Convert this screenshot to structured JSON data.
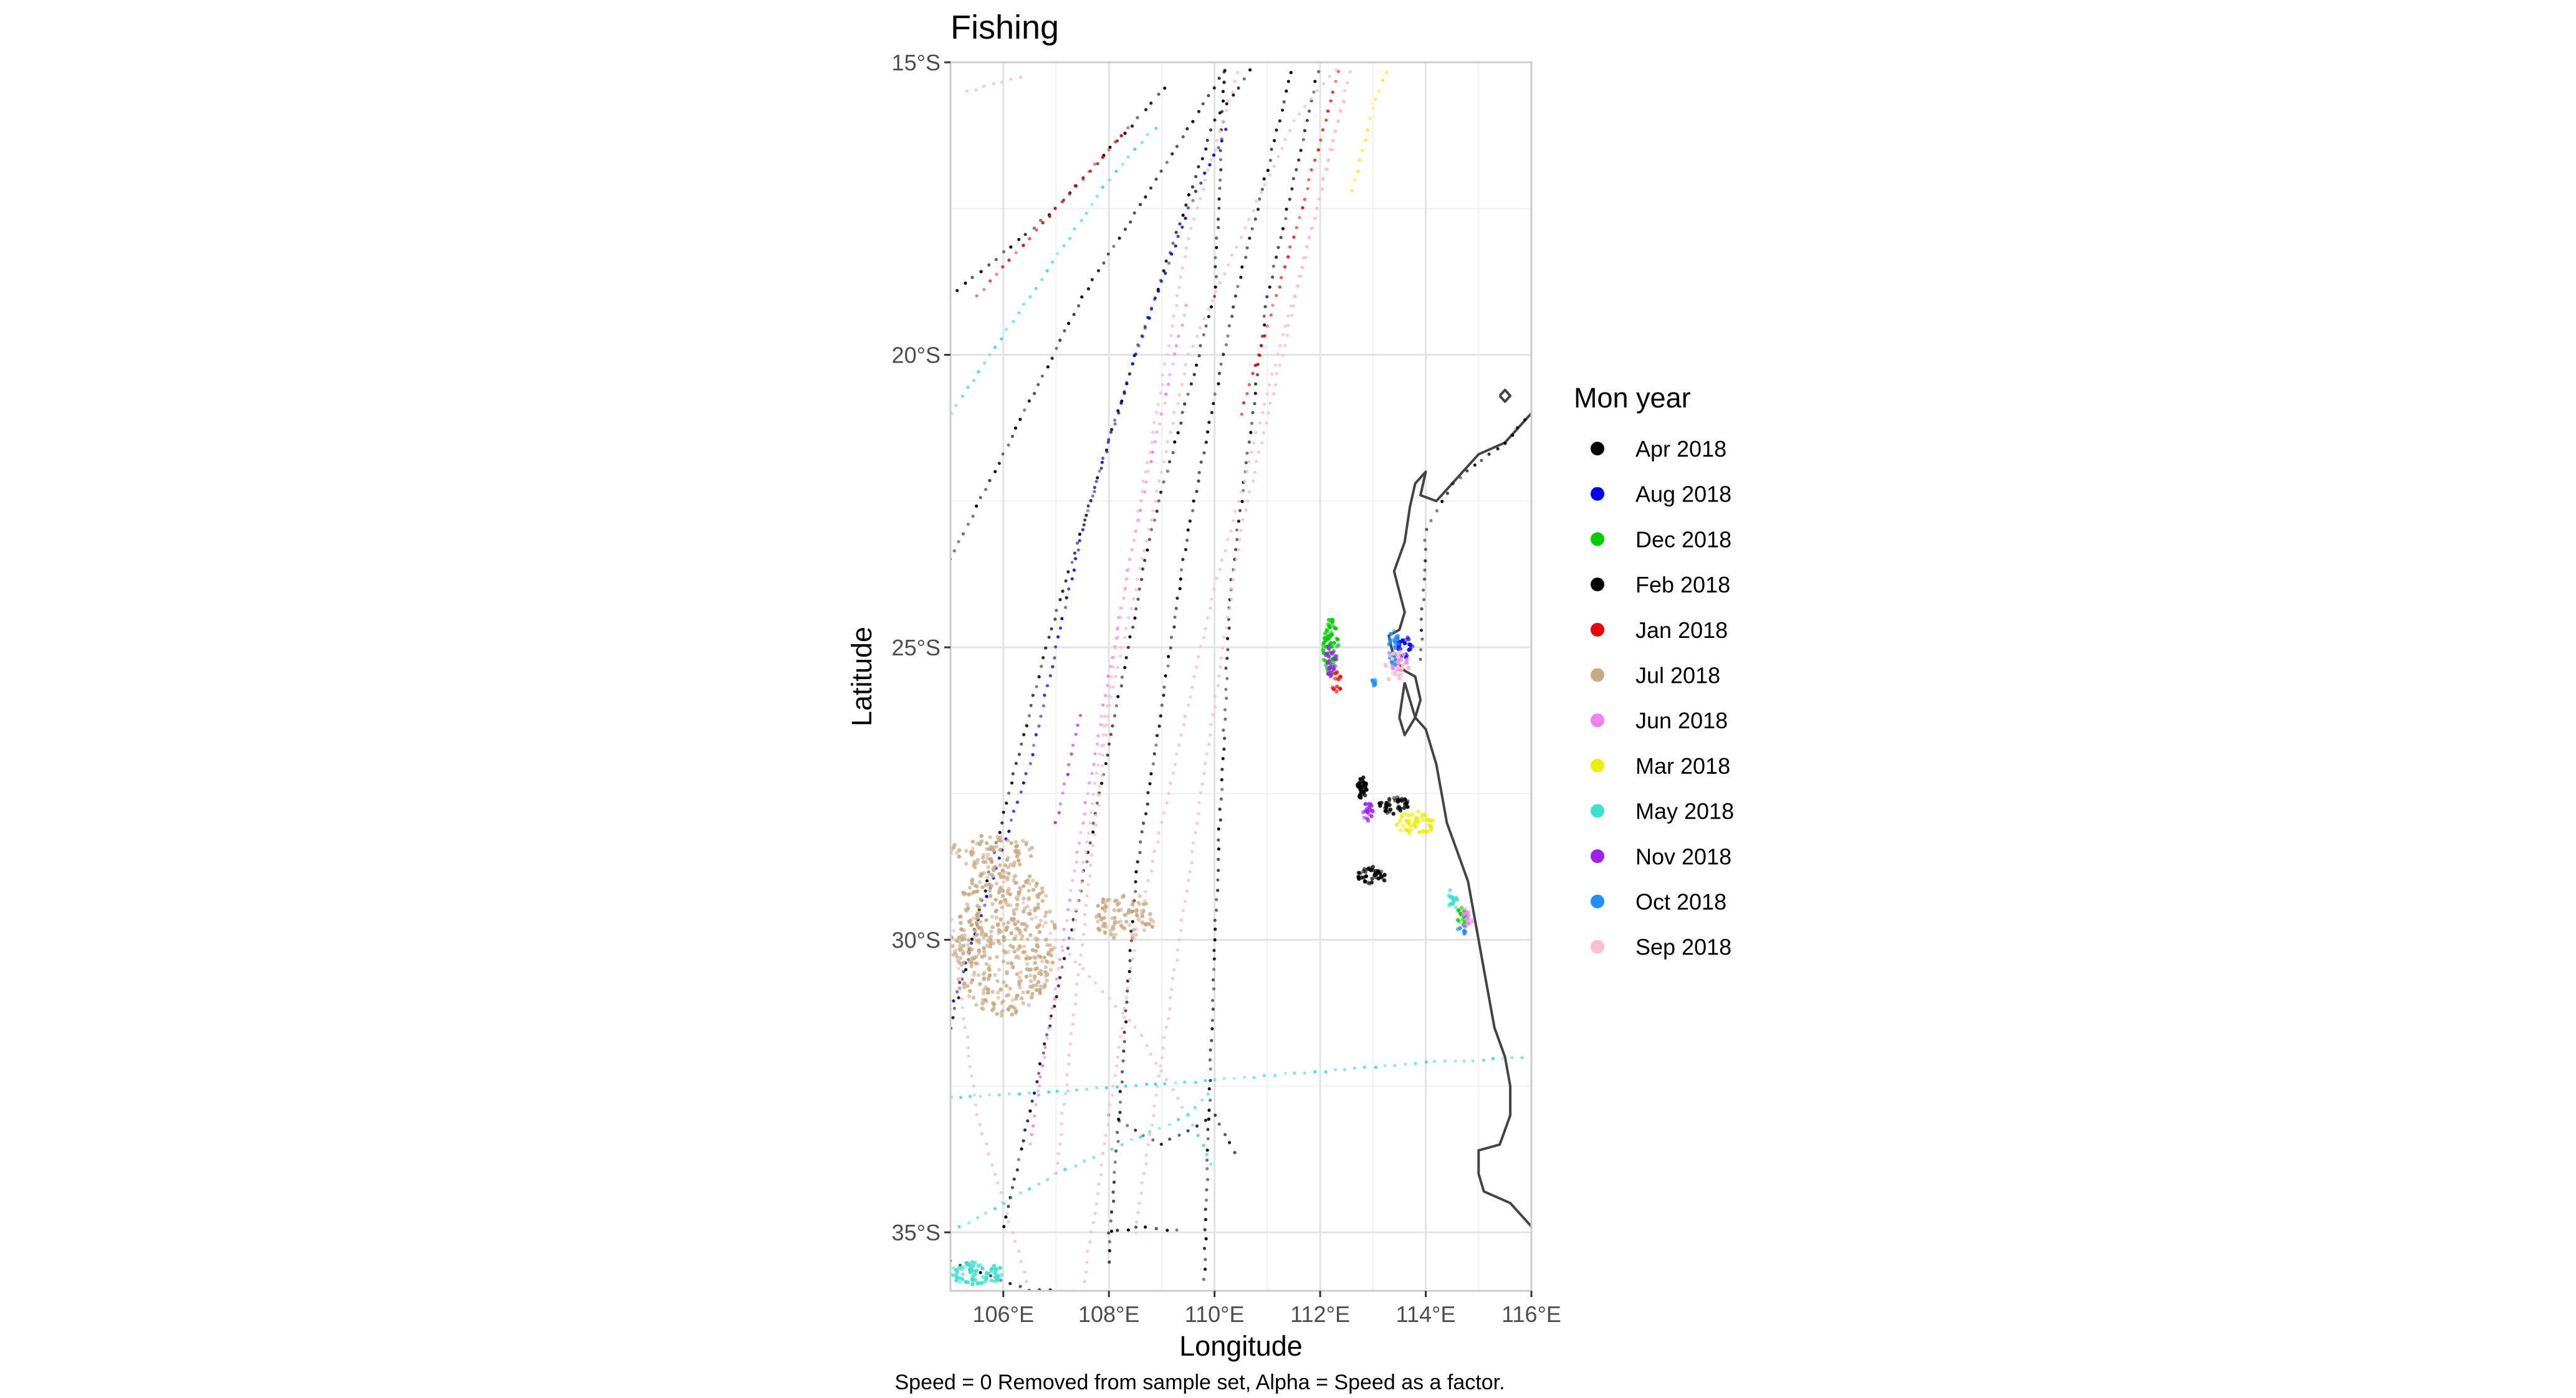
{
  "chart_data": {
    "type": "scatter",
    "title": "Fishing",
    "xlabel": "Longitude",
    "ylabel": "Latitude",
    "caption": "Speed = 0 Removed from sample set, Alpha = Speed as a factor.",
    "xlim": [
      105,
      116
    ],
    "ylim": [
      -36,
      -15
    ],
    "x_ticks": [
      106,
      108,
      110,
      112,
      114,
      116
    ],
    "x_tick_labels": [
      "106°E",
      "108°E",
      "110°E",
      "112°E",
      "114°E",
      "116°E"
    ],
    "y_ticks": [
      -15,
      -20,
      -25,
      -30,
      -35
    ],
    "y_tick_labels": [
      "15°S",
      "20°S",
      "25°S",
      "30°S",
      "35°S"
    ],
    "grid": true,
    "legend": {
      "title": "Mon year",
      "placement": "right",
      "entries": [
        {
          "label": "Apr 2018",
          "color": "#000000"
        },
        {
          "label": "Aug 2018",
          "color": "#0000ee"
        },
        {
          "label": "Dec 2018",
          "color": "#00cc00"
        },
        {
          "label": "Feb 2018",
          "color": "#000000"
        },
        {
          "label": "Jan 2018",
          "color": "#ee0000"
        },
        {
          "label": "Jul 2018",
          "color": "#c8ab85"
        },
        {
          "label": "Jun 2018",
          "color": "#ee82ee"
        },
        {
          "label": "Mar 2018",
          "color": "#eeee00"
        },
        {
          "label": "May 2018",
          "color": "#40e0d0"
        },
        {
          "label": "Nov 2018",
          "color": "#a020f0"
        },
        {
          "label": "Oct 2018",
          "color": "#1e90ff"
        },
        {
          "label": "Sep 2018",
          "color": "#ffc0cb"
        }
      ]
    },
    "coastline": [
      [
        [
          116,
          -21.0
        ],
        [
          115.5,
          -21.5
        ],
        [
          115.0,
          -21.7
        ],
        [
          114.5,
          -22.2
        ],
        [
          114.2,
          -22.5
        ],
        [
          113.9,
          -22.4
        ],
        [
          114.0,
          -22.0
        ],
        [
          113.8,
          -22.2
        ],
        [
          113.7,
          -22.6
        ],
        [
          113.6,
          -23.2
        ],
        [
          113.4,
          -23.7
        ],
        [
          113.6,
          -24.4
        ],
        [
          113.5,
          -24.7
        ],
        [
          113.3,
          -24.8
        ],
        [
          113.4,
          -25.2
        ],
        [
          113.6,
          -25.4
        ],
        [
          113.8,
          -25.5
        ],
        [
          113.9,
          -25.9
        ],
        [
          113.8,
          -26.2
        ],
        [
          114.0,
          -26.4
        ],
        [
          114.1,
          -26.7
        ],
        [
          114.2,
          -27.0
        ],
        [
          114.3,
          -27.5
        ],
        [
          114.4,
          -28.0
        ],
        [
          114.6,
          -28.5
        ],
        [
          114.8,
          -29.0
        ],
        [
          114.9,
          -29.5
        ],
        [
          115.0,
          -30.0
        ],
        [
          115.1,
          -30.5
        ],
        [
          115.2,
          -31.0
        ],
        [
          115.3,
          -31.5
        ],
        [
          115.5,
          -32.0
        ],
        [
          115.6,
          -32.5
        ],
        [
          115.6,
          -33.0
        ],
        [
          115.4,
          -33.5
        ],
        [
          115.0,
          -33.6
        ],
        [
          115.0,
          -34.0
        ],
        [
          115.1,
          -34.3
        ],
        [
          115.6,
          -34.5
        ],
        [
          116,
          -34.9
        ]
      ],
      [
        [
          113.6,
          -25.6
        ],
        [
          113.7,
          -25.9
        ],
        [
          113.8,
          -26.2
        ],
        [
          113.6,
          -26.5
        ],
        [
          113.5,
          -26.2
        ],
        [
          113.6,
          -25.6
        ]
      ],
      [
        [
          115.4,
          -20.7
        ],
        [
          115.5,
          -20.6
        ],
        [
          115.6,
          -20.7
        ],
        [
          115.5,
          -20.8
        ],
        [
          115.4,
          -20.7
        ]
      ]
    ],
    "series": [
      {
        "name": "Apr 2018",
        "color": "#000000",
        "tracks": [
          [
            [
              105,
              -19.0
            ],
            [
              107.0,
              -17.5
            ],
            [
              109.2,
              -15.3
            ]
          ],
          [
            [
              105,
              -23.5
            ],
            [
              107.5,
              -19.0
            ],
            [
              110.3,
              -15.0
            ]
          ],
          [
            [
              105,
              -31.5
            ],
            [
              106.8,
              -25.0
            ],
            [
              108.5,
              -20.0
            ],
            [
              110.0,
              -16.0
            ],
            [
              110.8,
              -15.0
            ]
          ],
          [
            [
              108.0,
              -35.5
            ],
            [
              108.5,
              -29.0
            ],
            [
              109.5,
              -23.0
            ],
            [
              110.4,
              -19.0
            ],
            [
              111.5,
              -15.0
            ]
          ],
          [
            [
              109.8,
              -35.8
            ],
            [
              110.0,
              -30.0
            ],
            [
              110.3,
              -24.0
            ],
            [
              111.0,
              -19.0
            ],
            [
              112.0,
              -15.0
            ]
          ],
          [
            [
              106.0,
              -34.9
            ],
            [
              107.5,
              -29.0
            ],
            [
              108.8,
              -23.0
            ],
            [
              110.0,
              -19.0
            ],
            [
              110.2,
              -15.0
            ]
          ],
          [
            [
              113.9,
              -25.2
            ],
            [
              114.0,
              -23.0
            ],
            [
              114.5,
              -22.2
            ],
            [
              115.5,
              -21.5
            ],
            [
              116,
              -21.0
            ]
          ],
          [
            [
              108.0,
              -35.0
            ],
            [
              108.7,
              -34.9
            ],
            [
              109.5,
              -35.0
            ]
          ]
        ],
        "clusters": [
          {
            "x": 112.8,
            "y": -27.4,
            "rx": 0.1,
            "ry": 0.2,
            "n": 40
          },
          {
            "x": 113.0,
            "y": -28.9,
            "rx": 0.3,
            "ry": 0.15,
            "n": 40
          }
        ]
      },
      {
        "name": "Aug 2018",
        "color": "#0000ee",
        "tracks": [
          [
            [
              105,
              -31.2
            ],
            [
              106.5,
              -27.0
            ],
            [
              107.5,
              -23.0
            ],
            [
              108.5,
              -20.0
            ],
            [
              109.5,
              -17.5
            ],
            [
              110.3,
              -16.0
            ]
          ]
        ],
        "clusters": [
          {
            "x": 113.6,
            "y": -25.0,
            "rx": 0.15,
            "ry": 0.2,
            "n": 25
          }
        ]
      },
      {
        "name": "Dec 2018",
        "color": "#00cc00",
        "tracks": [],
        "clusters": [
          {
            "x": 112.2,
            "y": -25.0,
            "rx": 0.15,
            "ry": 0.5,
            "n": 70
          },
          {
            "x": 114.7,
            "y": -29.6,
            "rx": 0.1,
            "ry": 0.2,
            "n": 15
          }
        ]
      },
      {
        "name": "Feb 2018",
        "color": "#000000",
        "tracks": [
          [
            [
              108.0,
              -33.0
            ],
            [
              109.0,
              -33.5
            ],
            [
              110.0,
              -33.0
            ],
            [
              110.5,
              -33.8
            ]
          ],
          [
            [
              105,
              -35.5
            ],
            [
              106.5,
              -36.0
            ],
            [
              107.5,
              -36.0
            ]
          ]
        ],
        "clusters": [
          {
            "x": 113.4,
            "y": -27.7,
            "rx": 0.3,
            "ry": 0.15,
            "n": 40
          }
        ]
      },
      {
        "name": "Jan 2018",
        "color": "#ee0000",
        "tracks": [
          [
            [
              110.5,
              -21.0
            ],
            [
              111.5,
              -18.0
            ],
            [
              112.4,
              -15.0
            ]
          ],
          [
            [
              105.5,
              -19.0
            ],
            [
              107.5,
              -17.0
            ],
            [
              108.5,
              -16.0
            ]
          ]
        ],
        "clusters": [
          {
            "x": 112.3,
            "y": -25.6,
            "rx": 0.1,
            "ry": 0.2,
            "n": 12
          }
        ]
      },
      {
        "name": "Jul 2018",
        "color": "#c8ab85",
        "tracks": [],
        "clusters": [
          {
            "x": 106.0,
            "y": -30.0,
            "rx": 1.0,
            "ry": 1.3,
            "n": 450
          },
          {
            "x": 108.3,
            "y": -29.6,
            "rx": 0.6,
            "ry": 0.4,
            "n": 90
          },
          {
            "x": 105.8,
            "y": -28.5,
            "rx": 0.8,
            "ry": 0.3,
            "n": 80
          }
        ]
      },
      {
        "name": "Jun 2018",
        "color": "#ee82ee",
        "tracks": [
          [
            [
              106.5,
              -33.5
            ],
            [
              107.5,
              -28.0
            ],
            [
              108.5,
              -23.0
            ],
            [
              109.5,
              -19.0
            ]
          ]
        ],
        "clusters": [
          {
            "x": 113.5,
            "y": -25.3,
            "rx": 0.2,
            "ry": 0.2,
            "n": 20
          },
          {
            "x": 114.8,
            "y": -29.6,
            "rx": 0.1,
            "ry": 0.2,
            "n": 15
          }
        ]
      },
      {
        "name": "Mar 2018",
        "color": "#eeee00",
        "tracks": [
          [
            [
              112.6,
              -17.2
            ],
            [
              112.8,
              -16.5
            ],
            [
              113.0,
              -15.8
            ],
            [
              113.3,
              -15.0
            ]
          ]
        ],
        "clusters": [
          {
            "x": 113.8,
            "y": -28.0,
            "rx": 0.4,
            "ry": 0.2,
            "n": 50
          }
        ]
      },
      {
        "name": "May 2018",
        "color": "#40e0d0",
        "tracks": [
          [
            [
              105,
              -21.0
            ],
            [
              106.5,
              -19.0
            ],
            [
              108.0,
              -17.0
            ],
            [
              109.0,
              -16.0
            ]
          ],
          [
            [
              105,
              -32.7
            ],
            [
              110.0,
              -32.4
            ],
            [
              114.0,
              -32.1
            ],
            [
              116,
              -32.0
            ]
          ],
          [
            [
              105,
              -35.0
            ],
            [
              107.0,
              -34.0
            ],
            [
              109.5,
              -33.0
            ],
            [
              110.0,
              -32.5
            ]
          ],
          [
            [
              109.5,
              -33.0
            ],
            [
              109.8,
              -33.5
            ],
            [
              110.0,
              -34.0
            ]
          ]
        ],
        "clusters": [
          {
            "x": 105.5,
            "y": -35.7,
            "rx": 0.5,
            "ry": 0.2,
            "n": 80
          },
          {
            "x": 114.5,
            "y": -29.3,
            "rx": 0.1,
            "ry": 0.2,
            "n": 15
          }
        ]
      },
      {
        "name": "Nov 2018",
        "color": "#a020f0",
        "tracks": [
          [
            [
              107.0,
              -28.0
            ],
            [
              107.5,
              -26.0
            ]
          ]
        ],
        "clusters": [
          {
            "x": 112.2,
            "y": -25.2,
            "rx": 0.1,
            "ry": 0.3,
            "n": 25
          },
          {
            "x": 112.9,
            "y": -27.8,
            "rx": 0.1,
            "ry": 0.2,
            "n": 20
          }
        ]
      },
      {
        "name": "Oct 2018",
        "color": "#1e90ff",
        "tracks": [],
        "clusters": [
          {
            "x": 113.4,
            "y": -25.0,
            "rx": 0.1,
            "ry": 0.3,
            "n": 30
          },
          {
            "x": 113.0,
            "y": -25.6,
            "rx": 0.05,
            "ry": 0.1,
            "n": 8
          },
          {
            "x": 114.7,
            "y": -29.8,
            "rx": 0.1,
            "ry": 0.1,
            "n": 8
          }
        ]
      },
      {
        "name": "Sep 2018",
        "color": "#ffc0cb",
        "tracks": [
          [
            [
              105,
              -29.5
            ],
            [
              105.5,
              -33.0
            ],
            [
              106.5,
              -36.0
            ]
          ],
          [
            [
              107.0,
              -34.0
            ],
            [
              108.0,
              -26.0
            ],
            [
              109.5,
              -20.0
            ],
            [
              111.5,
              -16.0
            ],
            [
              112.4,
              -15.0
            ]
          ],
          [
            [
              107.5,
              -36.0
            ],
            [
              108.5,
              -30.0
            ],
            [
              110.0,
              -24.0
            ],
            [
              111.5,
              -19.0
            ],
            [
              112.5,
              -15.5
            ]
          ],
          [
            [
              108.5,
              -35.0
            ],
            [
              109.5,
              -29.0
            ],
            [
              110.5,
              -23.0
            ],
            [
              111.8,
              -18.0
            ],
            [
              112.6,
              -15.0
            ]
          ],
          [
            [
              107.3,
              -30.0
            ],
            [
              108.3,
              -24.0
            ],
            [
              109.5,
              -18.0
            ],
            [
              110.5,
              -15.0
            ]
          ],
          [
            [
              106.0,
              -29.0
            ],
            [
              108.5,
              -31.5
            ],
            [
              109.5,
              -33.0
            ]
          ],
          [
            [
              105.3,
              -15.5
            ],
            [
              106.5,
              -15.2
            ]
          ]
        ],
        "clusters": [
          {
            "x": 113.4,
            "y": -25.3,
            "rx": 0.2,
            "ry": 0.3,
            "n": 20
          }
        ]
      }
    ]
  }
}
